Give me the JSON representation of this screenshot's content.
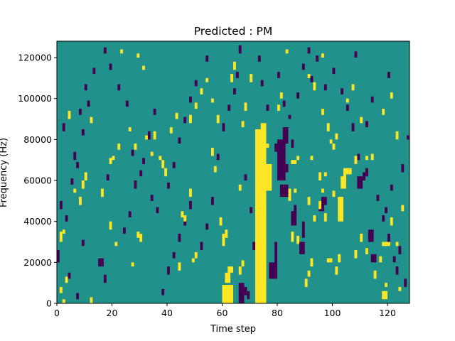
{
  "chart_data": {
    "type": "heatmap",
    "title": "Predicted : PM",
    "xlabel": "Time step",
    "ylabel": "Frequency (Hz)",
    "xlim": [
      0,
      128
    ],
    "ylim": [
      0,
      128000
    ],
    "xticks": [
      0,
      20,
      40,
      60,
      80,
      100,
      120
    ],
    "yticks": [
      0,
      20000,
      40000,
      60000,
      80000,
      100000,
      120000
    ],
    "grid": false,
    "legend": "none",
    "n_time_steps": 128,
    "n_freq_bins": 128,
    "freq_bin_hz": 1000,
    "colors": {
      "background": "#21918c",
      "high": "#fde725",
      "low": "#440154"
    },
    "cell_values": {
      "background": 0,
      "high": 1,
      "low": -1
    },
    "yellow_cells": [
      [
        60,
        0,
        64,
        9
      ],
      [
        61,
        10,
        63,
        15
      ],
      [
        62,
        15,
        64,
        18
      ],
      [
        72,
        0,
        76,
        85
      ],
      [
        74,
        85,
        76,
        88
      ],
      [
        73,
        30,
        75,
        35
      ],
      [
        75,
        55,
        78,
        68
      ],
      [
        75,
        76,
        77,
        78
      ],
      [
        12,
        0,
        13,
        3
      ],
      [
        1,
        5,
        2,
        8
      ],
      [
        3,
        10,
        4,
        13
      ],
      [
        1,
        30,
        2,
        35
      ],
      [
        2,
        34,
        3,
        36
      ],
      [
        90,
        8,
        91,
        12
      ],
      [
        91,
        13,
        92,
        16
      ],
      [
        92,
        18,
        93,
        22
      ],
      [
        98,
        20,
        100,
        22
      ],
      [
        101,
        14,
        102,
        18
      ],
      [
        102,
        20,
        103,
        24
      ],
      [
        102,
        40,
        104,
        52
      ],
      [
        103,
        56,
        105,
        62
      ],
      [
        104,
        63,
        106,
        66
      ],
      [
        100,
        75,
        101,
        78
      ],
      [
        101,
        80,
        102,
        83
      ],
      [
        104,
        60,
        105,
        64
      ],
      [
        118,
        2,
        120,
        6
      ],
      [
        119,
        8,
        120,
        10
      ],
      [
        118,
        28,
        121,
        30
      ],
      [
        106,
        63,
        107,
        66
      ],
      [
        108,
        68,
        109,
        72
      ],
      [
        112,
        70,
        113,
        72
      ],
      [
        114,
        70,
        115,
        73
      ],
      [
        60,
        28,
        61,
        34
      ],
      [
        59,
        38,
        60,
        42
      ],
      [
        61,
        32,
        62,
        36
      ],
      [
        84,
        50,
        85,
        56
      ],
      [
        86,
        54,
        87,
        56
      ],
      [
        85,
        68,
        87,
        70
      ],
      [
        87,
        70,
        88,
        72
      ],
      [
        95,
        60,
        96,
        64
      ],
      [
        97,
        62,
        98,
        64
      ],
      [
        96,
        54,
        97,
        56
      ],
      [
        85,
        30,
        86,
        35
      ],
      [
        87,
        29,
        88,
        33
      ],
      [
        66,
        14,
        67,
        18
      ],
      [
        67,
        18,
        68,
        21
      ],
      [
        66,
        55,
        67,
        58
      ],
      [
        93,
        40,
        94,
        43
      ],
      [
        91,
        48,
        92,
        52
      ],
      [
        92,
        70,
        93,
        72
      ],
      [
        50,
        22,
        51,
        25
      ],
      [
        49,
        20,
        50,
        22
      ],
      [
        44,
        16,
        45,
        20
      ],
      [
        30,
        30,
        31,
        34
      ],
      [
        29,
        32,
        30,
        35
      ],
      [
        32,
        80,
        33,
        82
      ],
      [
        43,
        90,
        44,
        93
      ],
      [
        48,
        88,
        49,
        92
      ],
      [
        50,
        95,
        51,
        98
      ],
      [
        56,
        98,
        57,
        100
      ],
      [
        52,
        102,
        53,
        105
      ],
      [
        54,
        108,
        55,
        110
      ],
      [
        63,
        108,
        64,
        112
      ],
      [
        64,
        114,
        65,
        118
      ],
      [
        45,
        42,
        46,
        45
      ],
      [
        46,
        40,
        47,
        43
      ],
      [
        48,
        52,
        49,
        56
      ],
      [
        39,
        62,
        40,
        66
      ],
      [
        38,
        66,
        39,
        70
      ],
      [
        41,
        83,
        42,
        86
      ],
      [
        37,
        70,
        38,
        72
      ],
      [
        35,
        80,
        36,
        84
      ],
      [
        34,
        72,
        35,
        74
      ],
      [
        26,
        84,
        27,
        86
      ],
      [
        28,
        75,
        29,
        78
      ],
      [
        22,
        75,
        23,
        78
      ],
      [
        20,
        70,
        21,
        72
      ],
      [
        19,
        68,
        20,
        71
      ],
      [
        16,
        52,
        17,
        56
      ],
      [
        10,
        60,
        11,
        64
      ],
      [
        9,
        56,
        10,
        60
      ],
      [
        8,
        48,
        9,
        52
      ],
      [
        6,
        54,
        7,
        56
      ],
      [
        19,
        36,
        20,
        40
      ],
      [
        21,
        28,
        22,
        30
      ],
      [
        27,
        18,
        28,
        20
      ],
      [
        23,
        122,
        24,
        124
      ],
      [
        31,
        114,
        32,
        116
      ],
      [
        29,
        120,
        30,
        122
      ],
      [
        12,
        88,
        13,
        91
      ],
      [
        4,
        90,
        5,
        94
      ],
      [
        2,
        0,
        3,
        2
      ],
      [
        107,
        104,
        108,
        107
      ],
      [
        105,
        98,
        106,
        100
      ],
      [
        110,
        88,
        111,
        91
      ],
      [
        121,
        38,
        122,
        42
      ],
      [
        117,
        20,
        118,
        23
      ],
      [
        115,
        12,
        116,
        16
      ],
      [
        123,
        28,
        124,
        30
      ],
      [
        124,
        6,
        125,
        8
      ],
      [
        125,
        45,
        126,
        48
      ],
      [
        110,
        30,
        111,
        34
      ],
      [
        108,
        22,
        109,
        26
      ],
      [
        112,
        24,
        113,
        27
      ],
      [
        97,
        40,
        98,
        44
      ],
      [
        95,
        46,
        96,
        50
      ],
      [
        100,
        52,
        101,
        55
      ],
      [
        99,
        78,
        100,
        80
      ],
      [
        98,
        84,
        99,
        88
      ],
      [
        96,
        92,
        97,
        95
      ],
      [
        93,
        104,
        94,
        108
      ],
      [
        91,
        110,
        92,
        112
      ],
      [
        96,
        120,
        97,
        122
      ],
      [
        121,
        100,
        122,
        103
      ],
      [
        118,
        92,
        119,
        95
      ],
      [
        123,
        80,
        124,
        84
      ],
      [
        83,
        122,
        84,
        124
      ],
      [
        81,
        100,
        82,
        103
      ],
      [
        80,
        94,
        81,
        97
      ],
      [
        68,
        94,
        69,
        98
      ],
      [
        67,
        86,
        68,
        89
      ],
      [
        70,
        108,
        71,
        112
      ],
      [
        58,
        88,
        59,
        92
      ],
      [
        56,
        72,
        57,
        76
      ],
      [
        57,
        64,
        58,
        67
      ]
    ],
    "purple_cells": [
      [
        66,
        0,
        68,
        10
      ],
      [
        67,
        4,
        69,
        8
      ],
      [
        69,
        2,
        70,
        6
      ],
      [
        77,
        12,
        80,
        20
      ],
      [
        79,
        20,
        80,
        30
      ],
      [
        80,
        60,
        83,
        80
      ],
      [
        82,
        78,
        84,
        86
      ],
      [
        81,
        52,
        84,
        58
      ],
      [
        85,
        38,
        87,
        45
      ],
      [
        86,
        42,
        87,
        48
      ],
      [
        88,
        24,
        90,
        30
      ],
      [
        89,
        32,
        90,
        40
      ],
      [
        95,
        45,
        97,
        50
      ],
      [
        96,
        48,
        98,
        52
      ],
      [
        109,
        56,
        111,
        62
      ],
      [
        112,
        62,
        113,
        66
      ],
      [
        114,
        20,
        116,
        24
      ],
      [
        113,
        30,
        115,
        36
      ],
      [
        119,
        44,
        120,
        47
      ],
      [
        121,
        55,
        122,
        58
      ],
      [
        123,
        14,
        124,
        18
      ],
      [
        124,
        24,
        125,
        28
      ],
      [
        125,
        64,
        126,
        68
      ],
      [
        127,
        80,
        128,
        82
      ],
      [
        0,
        20,
        1,
        26
      ],
      [
        1,
        46,
        2,
        50
      ],
      [
        2,
        84,
        3,
        88
      ],
      [
        6,
        70,
        7,
        74
      ],
      [
        8,
        92,
        9,
        95
      ],
      [
        10,
        104,
        11,
        107
      ],
      [
        15,
        18,
        17,
        22
      ],
      [
        17,
        10,
        18,
        14
      ],
      [
        18,
        60,
        19,
        63
      ],
      [
        24,
        34,
        25,
        37
      ],
      [
        26,
        42,
        27,
        45
      ],
      [
        28,
        56,
        29,
        60
      ],
      [
        31,
        68,
        32,
        71
      ],
      [
        33,
        80,
        34,
        84
      ],
      [
        35,
        92,
        36,
        95
      ],
      [
        38,
        4,
        39,
        7
      ],
      [
        40,
        14,
        41,
        18
      ],
      [
        42,
        22,
        43,
        25
      ],
      [
        44,
        30,
        45,
        34
      ],
      [
        46,
        38,
        47,
        41
      ],
      [
        48,
        46,
        49,
        50
      ],
      [
        52,
        26,
        53,
        30
      ],
      [
        54,
        36,
        55,
        39
      ],
      [
        56,
        48,
        57,
        52
      ],
      [
        58,
        70,
        59,
        73
      ],
      [
        60,
        84,
        61,
        88
      ],
      [
        62,
        94,
        63,
        97
      ],
      [
        64,
        102,
        65,
        105
      ],
      [
        65,
        110,
        66,
        113
      ],
      [
        66,
        122,
        67,
        126
      ],
      [
        68,
        60,
        69,
        63
      ],
      [
        70,
        44,
        71,
        47
      ],
      [
        71,
        26,
        72,
        30
      ],
      [
        80,
        110,
        81,
        113
      ],
      [
        82,
        96,
        83,
        99
      ],
      [
        84,
        90,
        85,
        92
      ],
      [
        87,
        100,
        88,
        103
      ],
      [
        89,
        114,
        90,
        117
      ],
      [
        91,
        122,
        92,
        125
      ],
      [
        100,
        112,
        101,
        115
      ],
      [
        103,
        102,
        104,
        105
      ],
      [
        105,
        94,
        106,
        97
      ],
      [
        107,
        84,
        108,
        88
      ],
      [
        109,
        70,
        110,
        73
      ],
      [
        111,
        60,
        112,
        64
      ],
      [
        116,
        50,
        117,
        53
      ],
      [
        118,
        40,
        119,
        43
      ],
      [
        120,
        30,
        121,
        34
      ],
      [
        122,
        20,
        123,
        23
      ],
      [
        126,
        8,
        127,
        12
      ],
      [
        120,
        110,
        121,
        113
      ],
      [
        114,
        98,
        115,
        101
      ],
      [
        112,
        86,
        113,
        89
      ],
      [
        108,
        120,
        109,
        123
      ],
      [
        97,
        104,
        98,
        107
      ],
      [
        94,
        118,
        95,
        121
      ],
      [
        92,
        108,
        93,
        111
      ],
      [
        85,
        76,
        86,
        80
      ],
      [
        83,
        64,
        84,
        68
      ],
      [
        79,
        74,
        80,
        78
      ],
      [
        76,
        94,
        77,
        97
      ],
      [
        74,
        106,
        75,
        109
      ],
      [
        73,
        118,
        74,
        121
      ],
      [
        54,
        118,
        55,
        121
      ],
      [
        50,
        106,
        51,
        109
      ],
      [
        48,
        98,
        49,
        101
      ],
      [
        46,
        88,
        47,
        91
      ],
      [
        44,
        78,
        45,
        81
      ],
      [
        42,
        66,
        43,
        69
      ],
      [
        40,
        56,
        41,
        59
      ],
      [
        36,
        44,
        37,
        47
      ],
      [
        34,
        50,
        35,
        53
      ],
      [
        30,
        62,
        31,
        65
      ],
      [
        27,
        72,
        28,
        75
      ],
      [
        25,
        96,
        26,
        99
      ],
      [
        22,
        104,
        23,
        107
      ],
      [
        19,
        114,
        20,
        117
      ],
      [
        17,
        122,
        18,
        125
      ],
      [
        13,
        112,
        14,
        115
      ],
      [
        11,
        96,
        12,
        99
      ],
      [
        9,
        82,
        10,
        85
      ],
      [
        7,
        66,
        8,
        69
      ],
      [
        5,
        58,
        6,
        61
      ],
      [
        3,
        40,
        4,
        43
      ],
      [
        4,
        12,
        5,
        15
      ],
      [
        7,
        2,
        8,
        5
      ],
      [
        9,
        28,
        10,
        31
      ]
    ]
  }
}
